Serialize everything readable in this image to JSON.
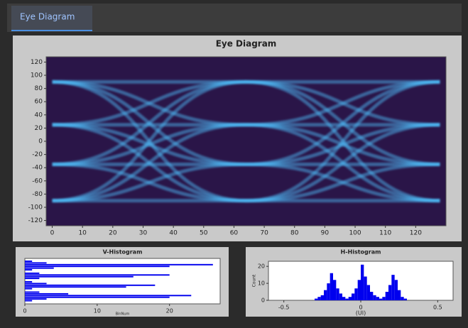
{
  "tab": "Eye Diagram",
  "chart_data": [
    {
      "type": "line",
      "title": "Eye Diagram",
      "color": "#4fc3ff",
      "background": "#2a1548",
      "x": [
        0,
        64,
        128
      ],
      "series": [
        {
          "values": [
            90,
            90,
            25
          ]
        },
        {
          "values": [
            90,
            25,
            -35
          ]
        },
        {
          "values": [
            90,
            -35,
            -90
          ]
        },
        {
          "values": [
            90,
            -90,
            90
          ]
        },
        {
          "values": [
            25,
            90,
            -35
          ]
        },
        {
          "values": [
            25,
            25,
            -90
          ]
        },
        {
          "values": [
            25,
            -35,
            90
          ]
        },
        {
          "values": [
            25,
            -90,
            25
          ]
        },
        {
          "values": [
            -35,
            90,
            -90
          ]
        },
        {
          "values": [
            -35,
            25,
            90
          ]
        },
        {
          "values": [
            -35,
            -35,
            25
          ]
        },
        {
          "values": [
            -35,
            -90,
            -35
          ]
        },
        {
          "values": [
            -90,
            90,
            90
          ]
        },
        {
          "values": [
            -90,
            25,
            25
          ]
        },
        {
          "values": [
            -90,
            -35,
            -35
          ]
        },
        {
          "values": [
            -90,
            -90,
            -90
          ]
        }
      ],
      "xlim": [
        -2,
        130
      ],
      "xticks": [
        0,
        10,
        20,
        30,
        40,
        50,
        60,
        70,
        80,
        90,
        100,
        110,
        120
      ],
      "ylim": [
        -128,
        128
      ],
      "yticks": [
        -120,
        -100,
        -80,
        -60,
        -40,
        -20,
        0,
        20,
        40,
        60,
        80,
        100,
        120
      ]
    },
    {
      "type": "hbar",
      "title": "V-Histogram",
      "xlabel": "BinNum",
      "color": "#0000ee",
      "values": [
        1,
        3,
        26,
        20,
        4,
        1,
        0,
        2,
        20,
        15,
        2,
        0,
        1,
        3,
        18,
        14,
        1,
        0,
        2,
        6,
        23,
        20,
        3,
        1
      ],
      "xlim": [
        0,
        27
      ],
      "xticks": [
        0,
        10,
        20
      ]
    },
    {
      "type": "histogram",
      "title": "H-Histogram",
      "xlabel": "(UI)",
      "ylabel": "Count",
      "color": "#0000ee",
      "bins": [
        -0.3,
        -0.28,
        -0.26,
        -0.24,
        -0.22,
        -0.2,
        -0.18,
        -0.16,
        -0.14,
        -0.12,
        -0.1,
        -0.08,
        -0.06,
        -0.04,
        -0.02,
        0,
        0.02,
        0.04,
        0.06,
        0.08,
        0.1,
        0.12,
        0.14,
        0.16,
        0.18,
        0.2,
        0.22,
        0.24,
        0.26,
        0.28,
        0.3
      ],
      "values": [
        1,
        2,
        3,
        6,
        10,
        16,
        12,
        7,
        4,
        2,
        1,
        2,
        4,
        7,
        12,
        21,
        14,
        9,
        5,
        3,
        2,
        1,
        2,
        5,
        9,
        15,
        12,
        6,
        2,
        1
      ],
      "xlim": [
        -0.6,
        0.6
      ],
      "xticks": [
        -0.5,
        0,
        0.5
      ],
      "ylim": [
        0,
        23
      ],
      "yticks": [
        0,
        10,
        20
      ]
    }
  ]
}
